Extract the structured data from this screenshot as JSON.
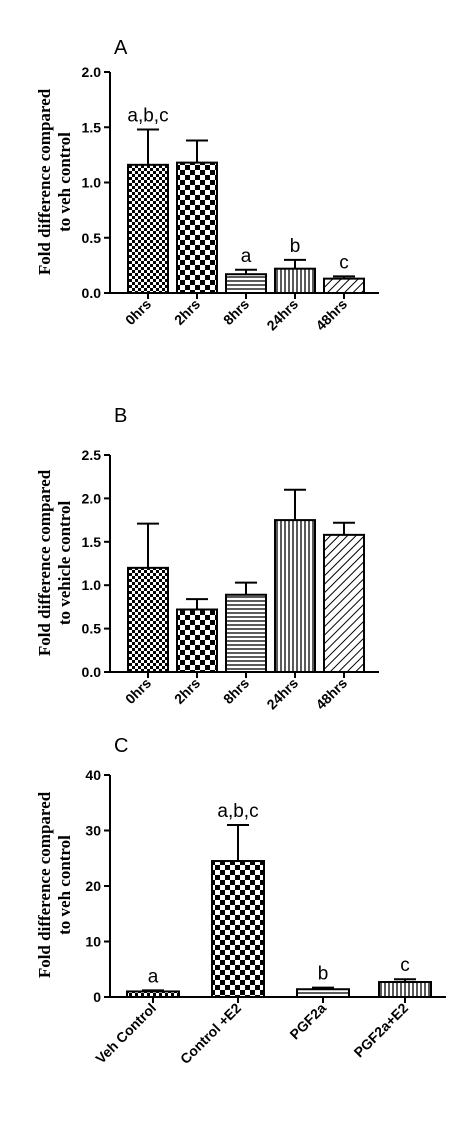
{
  "chart_data": [
    {
      "type": "bar",
      "panel": "A",
      "ylabel": [
        "Fold difference compared",
        "to veh control"
      ],
      "ylim": [
        0,
        2.0
      ],
      "yticks": [
        "0.0",
        "0.5",
        "1.0",
        "1.5",
        "2.0"
      ],
      "categories": [
        "0hrs",
        "2hrs",
        "8hrs",
        "24hrs",
        "48hrs"
      ],
      "values": [
        1.16,
        1.18,
        0.17,
        0.22,
        0.13
      ],
      "errors": [
        0.32,
        0.2,
        0.04,
        0.08,
        0.02
      ],
      "patterns": [
        "checker-fine",
        "checker",
        "horizontal",
        "vertical",
        "diagonal"
      ],
      "annotations": [
        "a,b,c",
        "",
        "a",
        "b",
        "c"
      ]
    },
    {
      "type": "bar",
      "panel": "B",
      "ylabel": [
        "Fold difference compared",
        "to vehicle control"
      ],
      "ylim": [
        0,
        2.5
      ],
      "yticks": [
        "0.0",
        "0.5",
        "1.0",
        "1.5",
        "2.0",
        "2.5"
      ],
      "categories": [
        "0hrs",
        "2hrs",
        "8hrs",
        "24hrs",
        "48hrs"
      ],
      "values": [
        1.2,
        0.72,
        0.89,
        1.75,
        1.58
      ],
      "errors": [
        0.51,
        0.12,
        0.14,
        0.35,
        0.14
      ],
      "patterns": [
        "checker-fine",
        "checker",
        "horizontal",
        "vertical",
        "diagonal"
      ],
      "annotations": [
        "",
        "",
        "",
        "",
        ""
      ]
    },
    {
      "type": "bar",
      "panel": "C",
      "ylabel": [
        "Fold difference compared",
        "to veh control"
      ],
      "ylim": [
        0,
        40
      ],
      "yticks": [
        "0",
        "10",
        "20",
        "30",
        "40"
      ],
      "categories": [
        "Veh Control",
        "Control +E2",
        "PGF2a",
        "PGF2a+E2"
      ],
      "values": [
        1.0,
        24.5,
        1.4,
        2.7
      ],
      "errors": [
        0.2,
        6.5,
        0.3,
        0.5
      ],
      "patterns": [
        "checker-fine",
        "checker",
        "horizontal",
        "vertical"
      ],
      "annotations": [
        "a",
        "a,b,c",
        "b",
        "c"
      ]
    }
  ],
  "colors": {
    "ink": "#000000",
    "bar_bg": "#ffffff"
  }
}
